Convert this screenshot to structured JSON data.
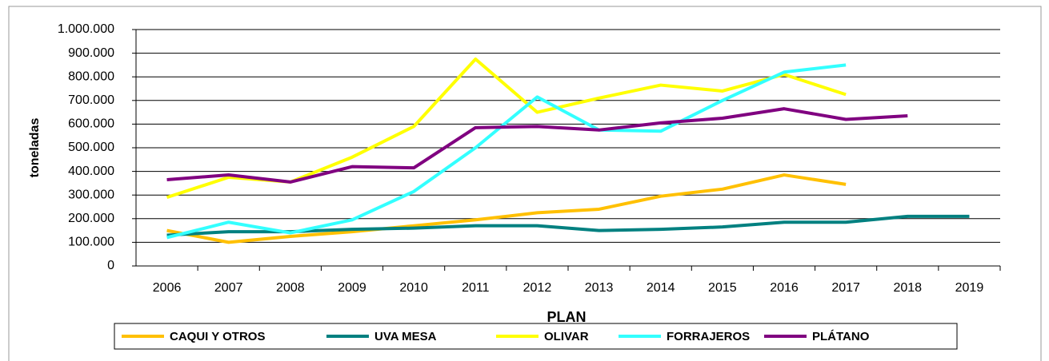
{
  "chart_data": {
    "type": "line",
    "xlabel": "PLAN",
    "ylabel": "toneladas",
    "categories": [
      "2006",
      "2007",
      "2008",
      "2009",
      "2010",
      "2011",
      "2012",
      "2013",
      "2014",
      "2015",
      "2016",
      "2017",
      "2018",
      "2019"
    ],
    "series": [
      {
        "name": "CAQUI Y OTROS",
        "color": "#FFC000",
        "values": [
          150000,
          100000,
          125000,
          145000,
          170000,
          195000,
          225000,
          240000,
          295000,
          325000,
          385000,
          345000,
          null,
          null
        ]
      },
      {
        "name": "UVA MESA",
        "color": "#008080",
        "values": [
          130000,
          145000,
          145000,
          155000,
          160000,
          170000,
          170000,
          150000,
          155000,
          165000,
          185000,
          185000,
          210000,
          210000
        ]
      },
      {
        "name": "OLIVAR",
        "color": "#FFFF00",
        "values": [
          290000,
          375000,
          355000,
          460000,
          590000,
          875000,
          650000,
          710000,
          765000,
          740000,
          810000,
          725000,
          null,
          null
        ]
      },
      {
        "name": "FORRAJEROS",
        "color": "#33FFFF",
        "values": [
          120000,
          185000,
          140000,
          195000,
          315000,
          500000,
          715000,
          575000,
          570000,
          700000,
          820000,
          850000,
          null,
          null
        ]
      },
      {
        "name": "PLÁTANO",
        "color": "#800080",
        "values": [
          365000,
          385000,
          355000,
          420000,
          415000,
          585000,
          590000,
          575000,
          605000,
          625000,
          665000,
          620000,
          635000,
          null
        ]
      }
    ],
    "ylim": [
      0,
      1000000
    ],
    "yticks": [
      0,
      {
        "value": 100000,
        "label": "100.000"
      },
      {
        "value": 200000,
        "label": "200.000"
      },
      {
        "value": 300000,
        "label": "300.000"
      },
      {
        "value": 400000,
        "label": "400.000"
      },
      {
        "value": 500000,
        "label": "500.000"
      },
      {
        "value": 600000,
        "label": "600.000"
      },
      {
        "value": 700000,
        "label": "700.000"
      },
      {
        "value": 800000,
        "label": "800.000"
      },
      {
        "value": 900000,
        "label": "900.000"
      },
      {
        "value": 1000000,
        "label": "1.000.000"
      }
    ],
    "grid": true,
    "legend": "bottom"
  }
}
